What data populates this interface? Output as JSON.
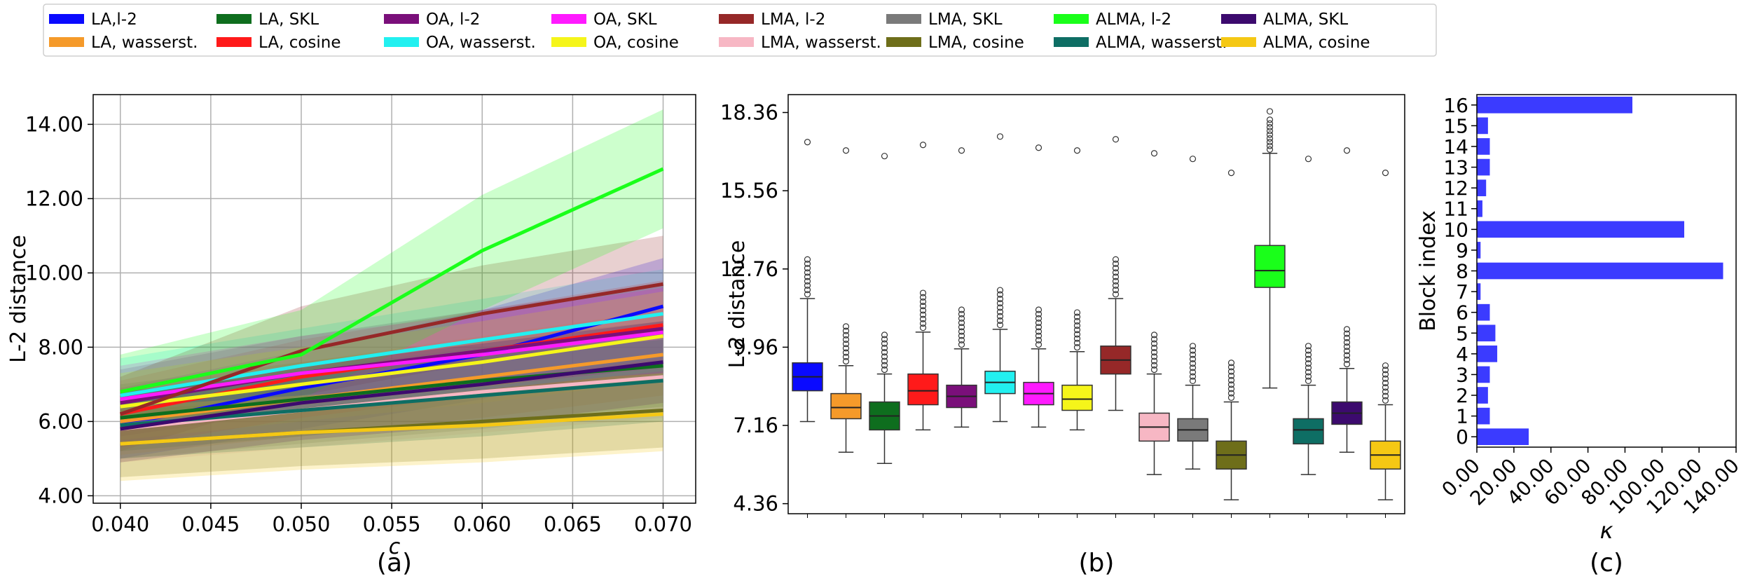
{
  "legend": {
    "placement": "top",
    "entries": [
      {
        "label": "LA,l-2",
        "color": "#0a0aff"
      },
      {
        "label": "LA, wasserst.",
        "color": "#f59a2a"
      },
      {
        "label": "LA, SKL",
        "color": "#0e6e1e"
      },
      {
        "label": "LA, cosine",
        "color": "#ff1a1a"
      },
      {
        "label": "OA, l-2",
        "color": "#7a0f7a"
      },
      {
        "label": "OA, wasserst.",
        "color": "#22f0f0"
      },
      {
        "label": "OA, SKL",
        "color": "#ff1aff"
      },
      {
        "label": "OA, cosine",
        "color": "#f5f51a"
      },
      {
        "label": "LMA, l-2",
        "color": "#962828"
      },
      {
        "label": "LMA, wasserst.",
        "color": "#f7b7c4"
      },
      {
        "label": "LMA, SKL",
        "color": "#7a7a7a"
      },
      {
        "label": "LMA, cosine",
        "color": "#6e6e1a"
      },
      {
        "label": "ALMA, l-2",
        "color": "#1aff1a"
      },
      {
        "label": "ALMA, wasserst.",
        "color": "#0e6e64"
      },
      {
        "label": "ALMA, SKL",
        "color": "#3c0a6e"
      },
      {
        "label": "ALMA, cosine",
        "color": "#f5c814"
      }
    ]
  },
  "chart_data": [
    {
      "type": "line",
      "panel_label": "(a)",
      "xlabel": "c",
      "ylabel": "L-2 distance",
      "xlim": [
        0.0385,
        0.0718
      ],
      "ylim": [
        3.8,
        14.8
      ],
      "grid": true,
      "xticks": [
        0.04,
        0.045,
        0.05,
        0.055,
        0.06,
        0.065,
        0.07
      ],
      "xtick_labels": [
        "0.040",
        "0.045",
        "0.050",
        "0.055",
        "0.060",
        "0.065",
        "0.070"
      ],
      "yticks": [
        4,
        6,
        8,
        10,
        12,
        14
      ],
      "ytick_labels": [
        "4.00",
        "6.00",
        "8.00",
        "10.00",
        "12.00",
        "14.00"
      ],
      "x": [
        0.04,
        0.05,
        0.06,
        0.07
      ],
      "series": [
        {
          "name": "LA,l-2",
          "values": [
            5.9,
            6.9,
            7.8,
            9.1
          ],
          "lower": [
            5.0,
            5.8,
            6.6,
            7.6
          ],
          "upper": [
            6.9,
            7.9,
            9.0,
            10.4
          ]
        },
        {
          "name": "LA, wasserst.",
          "values": [
            6.0,
            6.6,
            7.2,
            7.8
          ],
          "lower": [
            5.1,
            5.6,
            6.1,
            6.7
          ],
          "upper": [
            6.9,
            7.6,
            8.3,
            9.0
          ]
        },
        {
          "name": "LA, SKL",
          "values": [
            6.1,
            6.6,
            7.1,
            7.5
          ],
          "lower": [
            5.2,
            5.6,
            6.0,
            6.4
          ],
          "upper": [
            7.0,
            7.6,
            8.2,
            8.7
          ]
        },
        {
          "name": "LA, cosine",
          "values": [
            6.2,
            7.2,
            7.9,
            8.6
          ],
          "lower": [
            5.3,
            6.1,
            6.7,
            7.3
          ],
          "upper": [
            7.1,
            8.2,
            9.0,
            9.8
          ]
        },
        {
          "name": "OA, l-2",
          "values": [
            6.5,
            7.3,
            7.9,
            8.5
          ],
          "lower": [
            5.6,
            6.3,
            6.8,
            7.3
          ],
          "upper": [
            7.4,
            8.3,
            9.0,
            9.7
          ]
        },
        {
          "name": "OA, wasserst.",
          "values": [
            6.7,
            7.5,
            8.2,
            8.9
          ],
          "lower": [
            5.8,
            6.5,
            7.1,
            7.7
          ],
          "upper": [
            7.7,
            8.5,
            9.3,
            10.1
          ]
        },
        {
          "name": "OA, SKL",
          "values": [
            6.6,
            7.3,
            7.8,
            8.4
          ],
          "lower": [
            5.7,
            6.3,
            6.7,
            7.2
          ],
          "upper": [
            7.5,
            8.3,
            8.9,
            9.6
          ]
        },
        {
          "name": "OA, cosine",
          "values": [
            6.4,
            7.0,
            7.6,
            8.3
          ],
          "lower": [
            5.5,
            6.0,
            6.5,
            7.1
          ],
          "upper": [
            7.3,
            8.0,
            8.7,
            9.5
          ]
        },
        {
          "name": "LMA, l-2",
          "values": [
            6.2,
            7.9,
            8.9,
            9.7
          ],
          "lower": [
            5.2,
            6.7,
            7.6,
            8.4
          ],
          "upper": [
            7.2,
            9.1,
            10.2,
            11.0
          ]
        },
        {
          "name": "LMA, wasserst.",
          "values": [
            5.8,
            6.3,
            6.8,
            7.2
          ],
          "lower": [
            4.9,
            5.3,
            5.7,
            6.1
          ],
          "upper": [
            6.7,
            7.3,
            7.9,
            8.3
          ]
        },
        {
          "name": "LMA, SKL",
          "values": [
            5.9,
            6.4,
            6.9,
            7.4
          ],
          "lower": [
            5.0,
            5.4,
            5.8,
            6.3
          ],
          "upper": [
            6.8,
            7.4,
            8.0,
            8.5
          ]
        },
        {
          "name": "LMA, cosine",
          "values": [
            5.4,
            5.7,
            6.0,
            6.3
          ],
          "lower": [
            4.5,
            4.8,
            5.0,
            5.3
          ],
          "upper": [
            6.3,
            6.6,
            7.0,
            7.3
          ]
        },
        {
          "name": "ALMA, l-2",
          "values": [
            6.8,
            7.8,
            10.6,
            12.8
          ],
          "lower": [
            5.8,
            6.6,
            9.0,
            11.2
          ],
          "upper": [
            7.8,
            9.0,
            12.1,
            14.4
          ]
        },
        {
          "name": "ALMA, wasserst.",
          "values": [
            5.9,
            6.3,
            6.7,
            7.1
          ],
          "lower": [
            5.0,
            5.3,
            5.6,
            6.0
          ],
          "upper": [
            6.8,
            7.3,
            7.8,
            8.2
          ]
        },
        {
          "name": "ALMA, SKL",
          "values": [
            5.8,
            6.5,
            7.0,
            7.6
          ],
          "lower": [
            4.9,
            5.5,
            5.9,
            6.5
          ],
          "upper": [
            6.7,
            7.5,
            8.1,
            8.7
          ]
        },
        {
          "name": "ALMA, cosine",
          "values": [
            5.4,
            5.7,
            5.9,
            6.2
          ],
          "lower": [
            4.4,
            4.7,
            4.9,
            5.2
          ],
          "upper": [
            6.4,
            6.7,
            7.0,
            7.3
          ]
        }
      ]
    },
    {
      "type": "box",
      "panel_label": "(b)",
      "xlabel": "",
      "ylabel": "L-2 distance",
      "ylim": [
        4.0,
        19.0
      ],
      "grid": false,
      "yticks": [
        4.36,
        7.16,
        9.96,
        12.76,
        15.56,
        18.36
      ],
      "ytick_labels": [
        "4.36",
        "7.16",
        "9.96",
        "12.76",
        "15.56",
        "18.36"
      ],
      "boxes": [
        {
          "name": "LA,l-2",
          "whisker_low": 7.3,
          "q1": 8.4,
          "median": 8.9,
          "q3": 9.4,
          "whisker_high": 11.7,
          "outlier_high": 17.3
        },
        {
          "name": "LA, wasserst.",
          "whisker_low": 6.2,
          "q1": 7.4,
          "median": 7.8,
          "q3": 8.3,
          "whisker_high": 9.3,
          "outlier_high": 17.0
        },
        {
          "name": "LA, SKL",
          "whisker_low": 5.8,
          "q1": 7.0,
          "median": 7.5,
          "q3": 8.0,
          "whisker_high": 9.0,
          "outlier_high": 16.8
        },
        {
          "name": "LA, cosine",
          "whisker_low": 7.0,
          "q1": 7.9,
          "median": 8.4,
          "q3": 9.0,
          "whisker_high": 10.5,
          "outlier_high": 17.2
        },
        {
          "name": "OA, l-2",
          "whisker_low": 7.1,
          "q1": 7.8,
          "median": 8.2,
          "q3": 8.6,
          "whisker_high": 9.9,
          "outlier_high": 17.0
        },
        {
          "name": "OA, wasserst.",
          "whisker_low": 7.3,
          "q1": 8.3,
          "median": 8.7,
          "q3": 9.1,
          "whisker_high": 10.6,
          "outlier_high": 17.5
        },
        {
          "name": "OA, SKL",
          "whisker_low": 7.1,
          "q1": 7.9,
          "median": 8.3,
          "q3": 8.7,
          "whisker_high": 9.9,
          "outlier_high": 17.1
        },
        {
          "name": "OA, cosine",
          "whisker_low": 7.0,
          "q1": 7.7,
          "median": 8.1,
          "q3": 8.6,
          "whisker_high": 9.8,
          "outlier_high": 17.0
        },
        {
          "name": "LMA, l-2",
          "whisker_low": 7.7,
          "q1": 9.0,
          "median": 9.5,
          "q3": 10.0,
          "whisker_high": 11.7,
          "outlier_high": 17.4
        },
        {
          "name": "LMA, wasserst.",
          "whisker_low": 5.4,
          "q1": 6.6,
          "median": 7.1,
          "q3": 7.6,
          "whisker_high": 9.0,
          "outlier_high": 16.9
        },
        {
          "name": "LMA, SKL",
          "whisker_low": 5.6,
          "q1": 6.6,
          "median": 7.0,
          "q3": 7.4,
          "whisker_high": 8.6,
          "outlier_high": 16.7
        },
        {
          "name": "LMA, cosine",
          "whisker_low": 4.5,
          "q1": 5.6,
          "median": 6.1,
          "q3": 6.6,
          "whisker_high": 8.0,
          "outlier_high": 16.2
        },
        {
          "name": "ALMA, l-2",
          "whisker_low": 8.5,
          "q1": 12.1,
          "median": 12.7,
          "q3": 13.6,
          "whisker_high": 16.9,
          "outlier_high": 18.4
        },
        {
          "name": "ALMA, wasserst.",
          "whisker_low": 5.4,
          "q1": 6.5,
          "median": 7.0,
          "q3": 7.4,
          "whisker_high": 8.6,
          "outlier_high": 16.7
        },
        {
          "name": "ALMA, SKL",
          "whisker_low": 6.2,
          "q1": 7.2,
          "median": 7.6,
          "q3": 8.0,
          "whisker_high": 9.2,
          "outlier_high": 17.0
        },
        {
          "name": "ALMA, cosine",
          "whisker_low": 4.5,
          "q1": 5.6,
          "median": 6.1,
          "q3": 6.6,
          "whisker_high": 7.9,
          "outlier_high": 16.2
        }
      ]
    },
    {
      "type": "bar",
      "orientation": "horizontal",
      "panel_label": "(c)",
      "xlabel": "κ",
      "ylabel": "Block index",
      "xlim": [
        0,
        140
      ],
      "xticks": [
        0,
        20,
        40,
        60,
        80,
        100,
        120,
        140
      ],
      "xtick_labels": [
        "0.00",
        "20.00",
        "40.00",
        "60.00",
        "80.00",
        "100.00",
        "120.00",
        "140.00"
      ],
      "bar_color": "#3b3bff",
      "categories": [
        "0",
        "1",
        "2",
        "3",
        "4",
        "5",
        "6",
        "7",
        "8",
        "9",
        "10",
        "11",
        "12",
        "13",
        "14",
        "15",
        "16"
      ],
      "values": [
        28,
        7,
        6,
        7,
        11,
        10,
        7,
        2,
        133,
        2,
        112,
        3,
        5,
        7,
        7,
        6,
        84
      ]
    }
  ]
}
